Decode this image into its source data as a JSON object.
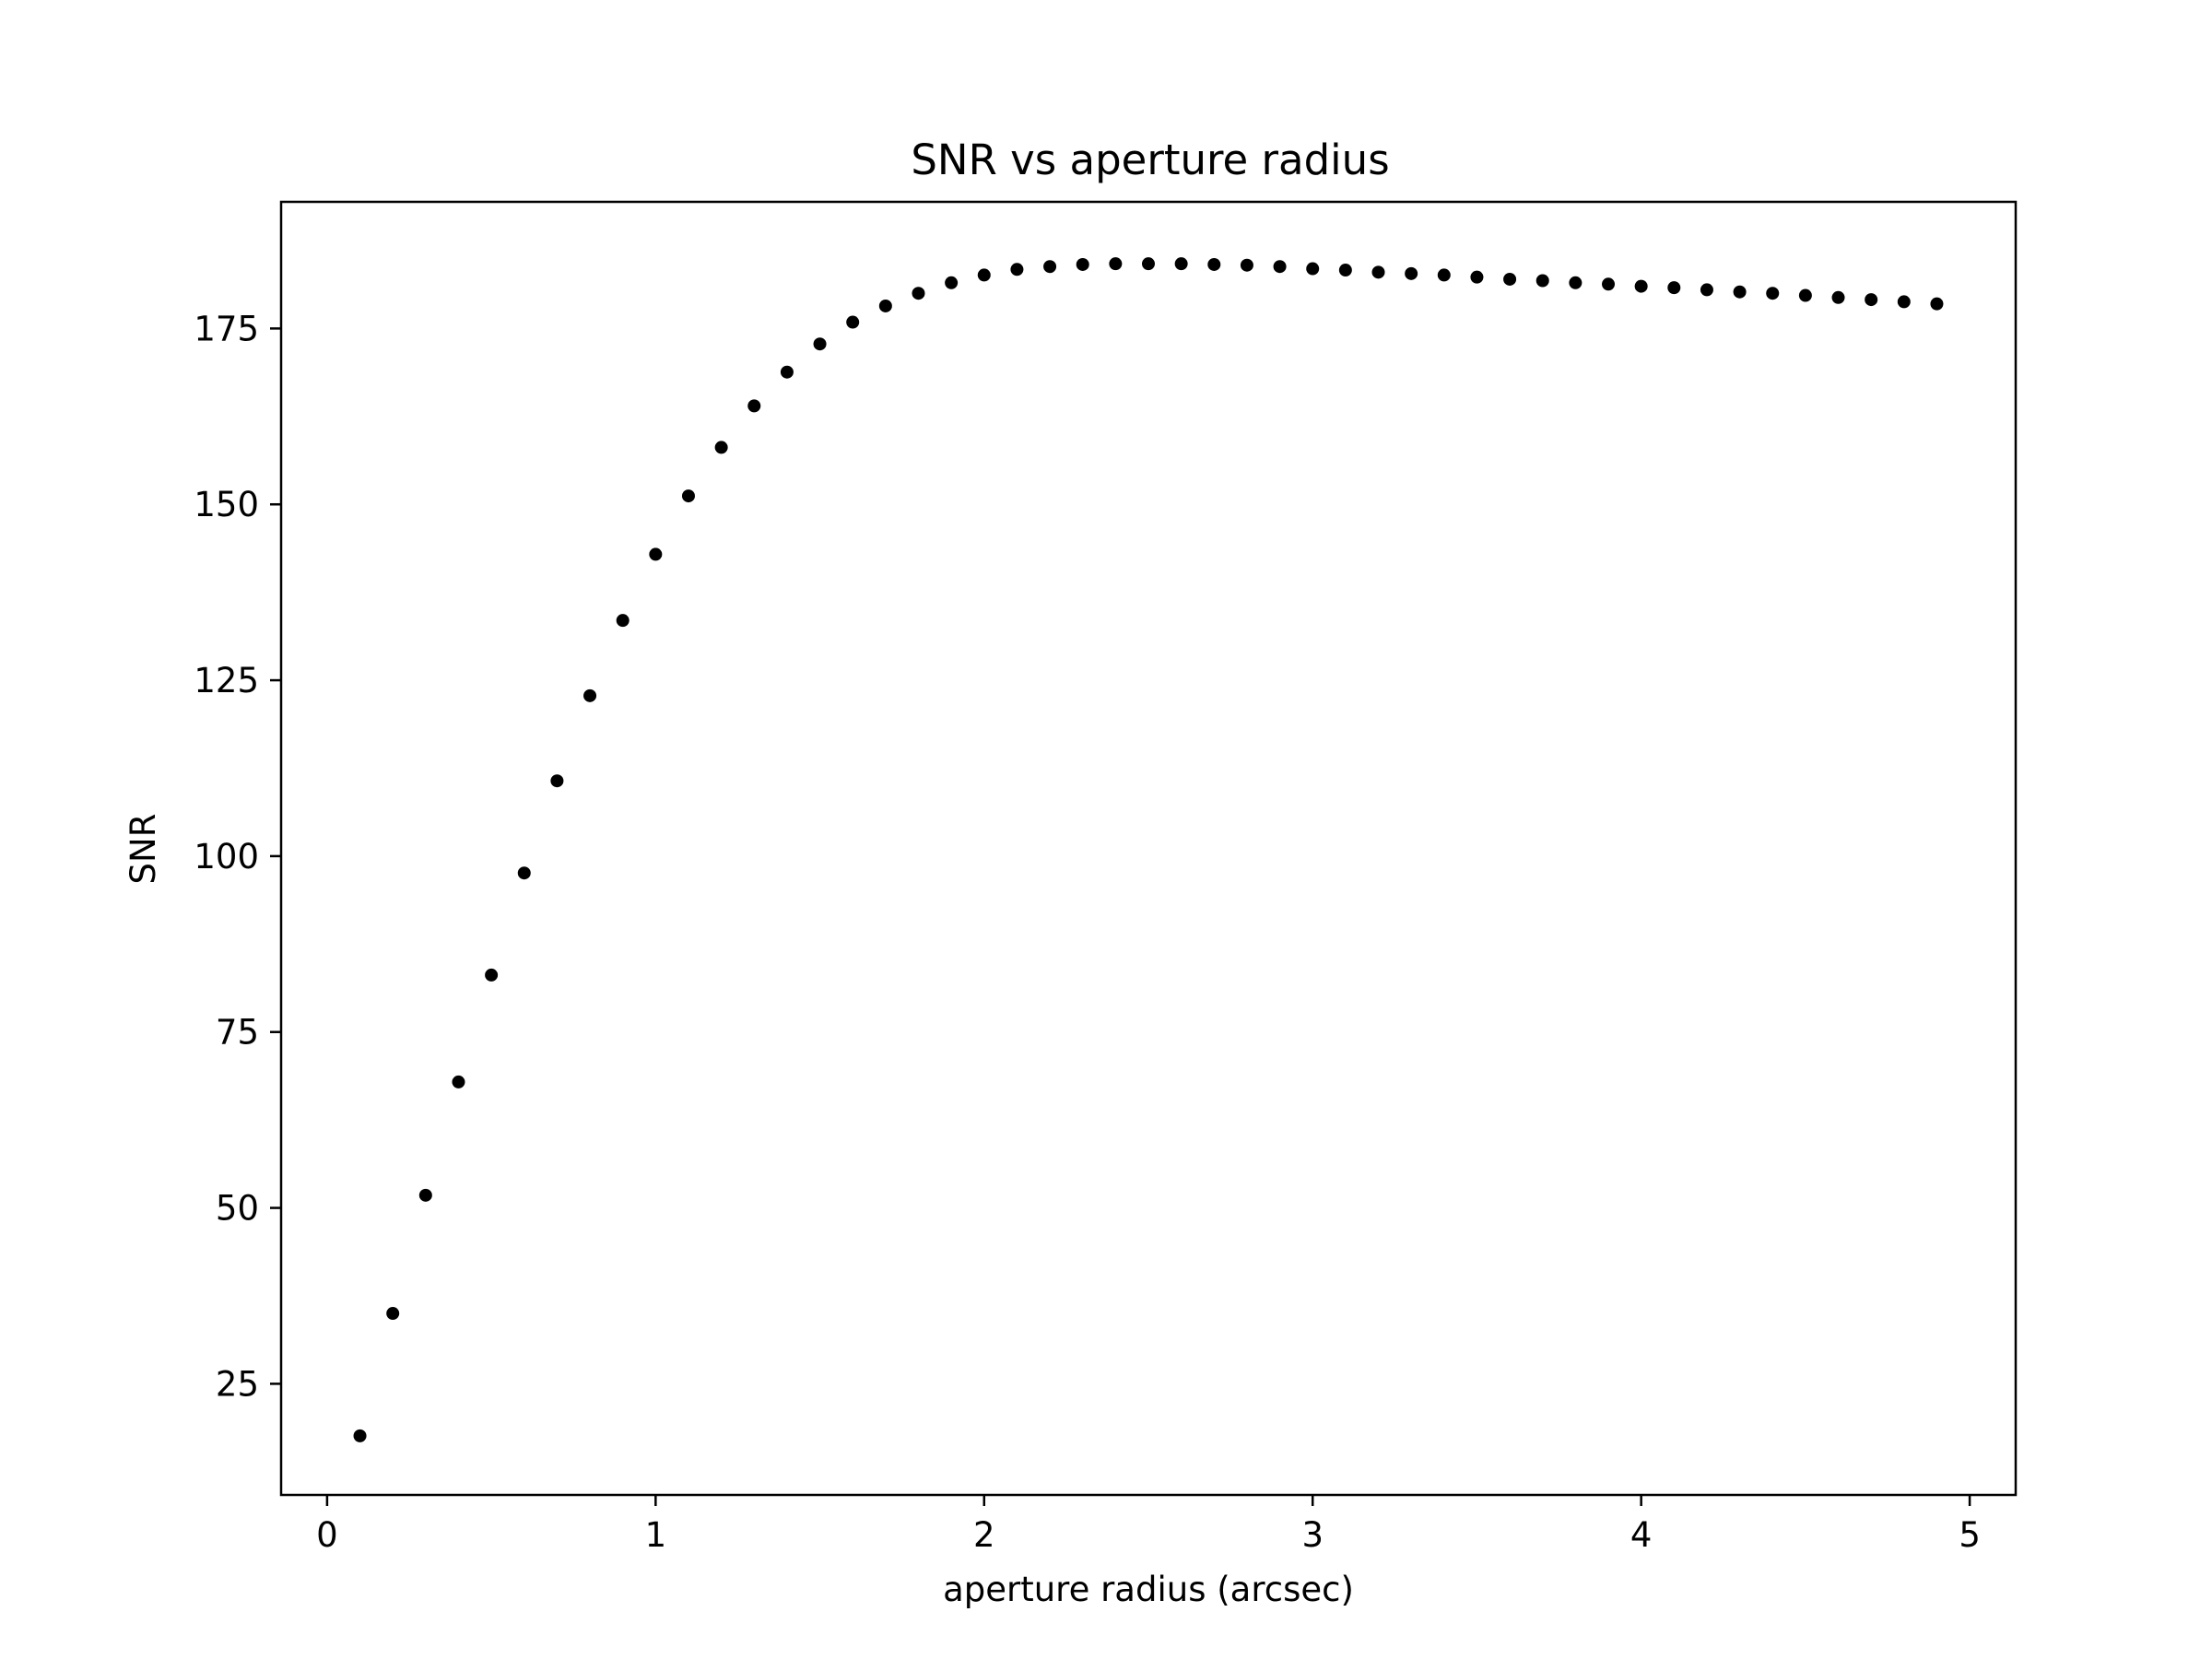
{
  "chart_data": {
    "type": "scatter",
    "title": "SNR vs aperture radius",
    "xlabel": "aperture radius (arcsec)",
    "ylabel": "SNR",
    "xlim": [
      -0.14,
      5.14
    ],
    "ylim": [
      9.2,
      193
    ],
    "xticks": [
      0,
      1,
      2,
      3,
      4,
      5
    ],
    "yticks": [
      25,
      50,
      75,
      100,
      125,
      150,
      175
    ],
    "grid": false,
    "marker_color": "#000000",
    "series": [
      {
        "x": [
          0.1,
          0.2,
          0.3,
          0.4,
          0.5,
          0.6,
          0.7,
          0.8,
          0.9,
          1.0,
          1.1,
          1.2,
          1.3,
          1.4,
          1.5,
          1.6,
          1.7,
          1.8,
          1.9,
          2.0,
          2.1,
          2.2,
          2.3,
          2.4,
          2.5,
          2.6,
          2.7,
          2.8,
          2.9,
          3.0,
          3.1,
          3.2,
          3.3,
          3.4,
          3.5,
          3.6,
          3.7,
          3.8,
          3.9,
          4.0,
          4.1,
          4.2,
          4.3,
          4.4,
          4.5,
          4.6,
          4.7,
          4.8,
          4.9
        ],
        "y": [
          17.6,
          35.0,
          51.8,
          67.9,
          83.1,
          97.6,
          110.7,
          122.8,
          133.5,
          142.9,
          151.2,
          158.1,
          164.0,
          168.8,
          172.8,
          175.9,
          178.2,
          180.0,
          181.5,
          182.6,
          183.4,
          183.8,
          184.1,
          184.2,
          184.2,
          184.2,
          184.1,
          184.0,
          183.8,
          183.5,
          183.3,
          183.0,
          182.8,
          182.6,
          182.3,
          182.0,
          181.8,
          181.5,
          181.3,
          181.0,
          180.8,
          180.5,
          180.2,
          180.0,
          179.7,
          179.4,
          179.1,
          178.8,
          178.5
        ]
      }
    ]
  }
}
